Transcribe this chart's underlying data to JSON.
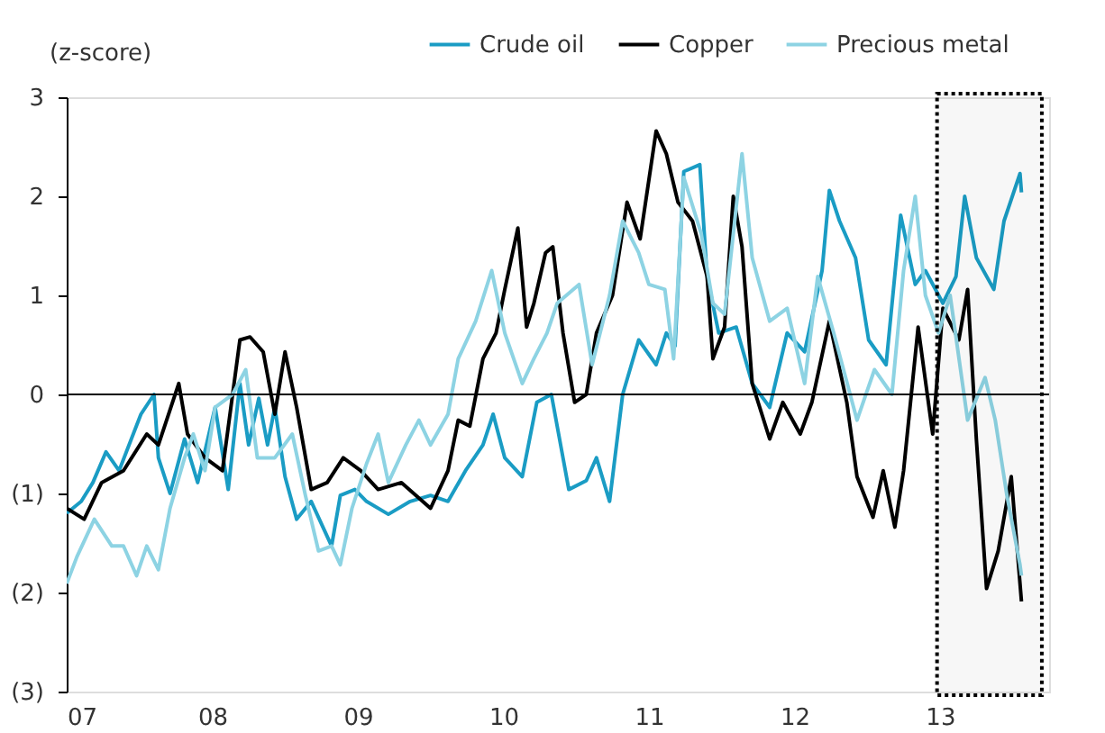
{
  "chart_data": {
    "type": "line",
    "ylabel": "(z-score)",
    "legend": "top right",
    "grid": false,
    "line_style": "solid",
    "xlim": [
      7,
      13.75
    ],
    "xticks": [
      {
        "value": 7,
        "label": "07"
      },
      {
        "value": 8,
        "label": "08"
      },
      {
        "value": 9,
        "label": "09"
      },
      10,
      11,
      12,
      13
    ],
    "ylim": [
      -3,
      3
    ],
    "yticks": [
      {
        "value": -3,
        "label": "(3)"
      },
      {
        "value": -2,
        "label": "(2)"
      },
      {
        "value": -1,
        "label": "(1)"
      },
      0,
      1,
      2,
      3
    ],
    "ref_lines": [
      {
        "axis": "y",
        "value": 0,
        "color": "#000000"
      }
    ],
    "bands": [
      {
        "axis": "x",
        "from": 12.98,
        "to": 13.7,
        "color": "#000000"
      }
    ],
    "series": [
      {
        "name": "Crude oil",
        "color": "#1a9cc4",
        "x": [
          7.0,
          7.1,
          7.18,
          7.27,
          7.36,
          7.51,
          7.6,
          7.63,
          7.71,
          7.81,
          7.9,
          8.02,
          8.11,
          8.19,
          8.25,
          8.32,
          8.38,
          8.43,
          8.5,
          8.58,
          8.68,
          8.82,
          8.88,
          8.98,
          9.06,
          9.21,
          9.36,
          9.5,
          9.62,
          9.74,
          9.86,
          9.93,
          10.01,
          10.13,
          10.23,
          10.33,
          10.45,
          10.57,
          10.64,
          10.73,
          10.82,
          10.93,
          11.05,
          11.12,
          11.18,
          11.24,
          11.35,
          11.4,
          11.48,
          11.6,
          11.71,
          11.83,
          11.95,
          12.07,
          12.19,
          12.24,
          12.31,
          12.42,
          12.51,
          12.63,
          12.73,
          12.83,
          12.9,
          13.02,
          13.11,
          13.17,
          13.25,
          13.37,
          13.44,
          13.55,
          13.56
        ],
        "values": [
          -1.2,
          -1.08,
          -0.89,
          -0.58,
          -0.77,
          -0.2,
          0,
          -0.64,
          -1.0,
          -0.45,
          -0.89,
          -0.13,
          -0.96,
          0.11,
          -0.51,
          -0.04,
          -0.51,
          -0.13,
          -0.83,
          -1.26,
          -1.08,
          -1.53,
          -1.02,
          -0.96,
          -1.08,
          -1.21,
          -1.08,
          -1.02,
          -1.08,
          -0.77,
          -0.51,
          -0.2,
          -0.64,
          -0.83,
          -0.08,
          0,
          -0.96,
          -0.87,
          -0.64,
          -1.08,
          0,
          0.55,
          0.3,
          0.62,
          0.49,
          2.25,
          2.32,
          1.19,
          0.62,
          0.68,
          0.11,
          -0.13,
          0.62,
          0.43,
          1.25,
          2.06,
          1.75,
          1.38,
          0.55,
          0.3,
          1.81,
          1.11,
          1.25,
          0.92,
          1.19,
          2.0,
          1.38,
          1.06,
          1.75,
          2.23,
          2.04
        ]
      },
      {
        "name": "Copper",
        "color": "#000000",
        "x": [
          7.0,
          7.12,
          7.24,
          7.39,
          7.55,
          7.63,
          7.77,
          7.83,
          7.95,
          8.07,
          8.19,
          8.26,
          8.35,
          8.43,
          8.5,
          8.58,
          8.68,
          8.79,
          8.9,
          9.02,
          9.14,
          9.3,
          9.5,
          9.62,
          9.69,
          9.77,
          9.86,
          9.95,
          10.01,
          10.1,
          10.16,
          10.21,
          10.29,
          10.34,
          10.41,
          10.49,
          10.57,
          10.64,
          10.75,
          10.85,
          10.94,
          11.05,
          11.12,
          11.2,
          11.3,
          11.4,
          11.44,
          11.52,
          11.58,
          11.64,
          11.71,
          11.83,
          11.92,
          12.04,
          12.12,
          12.24,
          12.36,
          12.43,
          12.54,
          12.61,
          12.69,
          12.75,
          12.85,
          12.95,
          13.02,
          13.13,
          13.19,
          13.25,
          13.32,
          13.4,
          13.49,
          13.56
        ],
        "values": [
          -1.15,
          -1.26,
          -0.89,
          -0.77,
          -0.4,
          -0.51,
          0.11,
          -0.4,
          -0.64,
          -0.77,
          0.55,
          0.58,
          0.43,
          -0.2,
          0.43,
          -0.13,
          -0.96,
          -0.89,
          -0.64,
          -0.77,
          -0.96,
          -0.89,
          -1.15,
          -0.77,
          -0.26,
          -0.32,
          0.36,
          0.62,
          1.06,
          1.68,
          0.68,
          0.92,
          1.43,
          1.49,
          0.62,
          -0.08,
          0,
          0.62,
          1.0,
          1.94,
          1.57,
          2.66,
          2.43,
          1.94,
          1.75,
          1.19,
          0.36,
          0.68,
          2.0,
          1.49,
          0.11,
          -0.45,
          -0.08,
          -0.4,
          -0.08,
          0.74,
          -0.08,
          -0.83,
          -1.24,
          -0.77,
          -1.34,
          -0.77,
          0.68,
          -0.4,
          0.87,
          0.55,
          1.06,
          -0.45,
          -1.96,
          -1.58,
          -0.83,
          -2.09
        ]
      },
      {
        "name": "Precious metal",
        "color": "#8dd3e3",
        "x": [
          7.0,
          7.07,
          7.19,
          7.31,
          7.39,
          7.48,
          7.55,
          7.63,
          7.71,
          7.81,
          7.87,
          7.95,
          8.02,
          8.14,
          8.23,
          8.31,
          8.43,
          8.55,
          8.64,
          8.73,
          8.82,
          8.88,
          8.96,
          9.06,
          9.14,
          9.21,
          9.33,
          9.42,
          9.5,
          9.62,
          9.69,
          9.81,
          9.92,
          10.01,
          10.13,
          10.21,
          10.3,
          10.37,
          10.52,
          10.61,
          10.73,
          10.82,
          10.93,
          11.0,
          11.11,
          11.17,
          11.24,
          11.36,
          11.44,
          11.52,
          11.64,
          11.71,
          11.83,
          11.95,
          12.07,
          12.16,
          12.27,
          12.43,
          12.55,
          12.67,
          12.75,
          12.83,
          12.9,
          12.99,
          13.07,
          13.19,
          13.31,
          13.38,
          13.46,
          13.55,
          13.56
        ],
        "values": [
          -1.91,
          -1.64,
          -1.26,
          -1.53,
          -1.53,
          -1.83,
          -1.53,
          -1.77,
          -1.15,
          -0.64,
          -0.4,
          -0.77,
          -0.13,
          0,
          0.25,
          -0.64,
          -0.64,
          -0.4,
          -1.02,
          -1.58,
          -1.53,
          -1.72,
          -1.15,
          -0.7,
          -0.4,
          -0.89,
          -0.51,
          -0.26,
          -0.51,
          -0.2,
          0.36,
          0.74,
          1.25,
          0.62,
          0.11,
          0.36,
          0.62,
          0.92,
          1.11,
          0.3,
          1.0,
          1.75,
          1.43,
          1.11,
          1.06,
          0.36,
          2.19,
          1.62,
          0.92,
          0.81,
          2.43,
          1.38,
          0.74,
          0.87,
          0.11,
          1.19,
          0.62,
          -0.26,
          0.25,
          0,
          1.25,
          2.0,
          1.0,
          0.62,
          1.0,
          -0.26,
          0.17,
          -0.26,
          -1.02,
          -1.72,
          -1.83
        ]
      }
    ]
  }
}
